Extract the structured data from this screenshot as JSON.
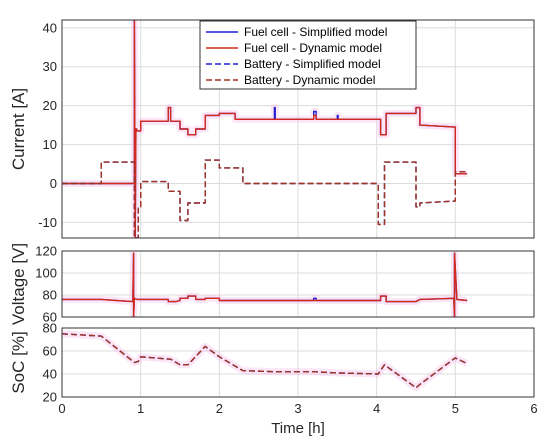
{
  "chart_data": [
    {
      "type": "line",
      "ylabel": "Current [A]",
      "xlim": [
        0,
        6
      ],
      "ylim": [
        -14,
        42
      ],
      "yticks": [
        -10,
        0,
        10,
        20,
        30,
        40
      ],
      "xticks": [
        0,
        1,
        2,
        3,
        4,
        5,
        6
      ],
      "grid": true,
      "legend_position": "top-right",
      "series": [
        {
          "name": "Fuel cell - Simplified model",
          "color": "#1f1fd0",
          "style": "solid",
          "x": [
            0,
            0.92,
            0.92,
            0.93,
            0.94,
            0.95,
            0.95,
            1.0,
            1.0,
            1.35,
            1.35,
            1.38,
            1.38,
            1.5,
            1.5,
            1.6,
            1.6,
            1.7,
            1.7,
            1.82,
            1.82,
            2.0,
            2.0,
            2.2,
            2.2,
            2.7,
            2.7,
            2.71,
            2.71,
            3.2,
            3.2,
            3.23,
            3.23,
            3.5,
            3.5,
            3.51,
            3.51,
            4.05,
            4.05,
            4.12,
            4.12,
            4.5,
            4.5,
            4.55,
            4.55,
            5.0,
            5.0,
            5.15
          ],
          "y": [
            0,
            0,
            42,
            -14,
            14,
            14,
            13.5,
            13.5,
            16,
            16,
            19.5,
            19.5,
            16,
            16,
            14,
            14,
            12.5,
            12.5,
            14,
            14,
            17.5,
            17.5,
            18,
            18,
            16.5,
            16.5,
            19.5,
            19.5,
            16.5,
            16.5,
            18.5,
            18.5,
            16.5,
            16.5,
            17.5,
            17.5,
            16.5,
            16.5,
            12.5,
            12.5,
            18,
            18,
            19.5,
            19.5,
            15,
            14.5,
            2.5,
            2.5
          ]
        },
        {
          "name": "Fuel cell - Dynamic model",
          "color": "#d42a1c",
          "style": "solid",
          "x": [
            0,
            0.92,
            0.92,
            0.93,
            0.94,
            0.95,
            0.95,
            1.0,
            1.0,
            1.35,
            1.35,
            1.38,
            1.38,
            1.5,
            1.5,
            1.6,
            1.6,
            1.7,
            1.7,
            1.82,
            1.82,
            2.0,
            2.0,
            2.2,
            2.2,
            2.7,
            2.7,
            3.2,
            3.2,
            3.23,
            3.23,
            4.05,
            4.05,
            4.12,
            4.12,
            4.5,
            4.5,
            4.55,
            4.55,
            5.0,
            5.0,
            5.15
          ],
          "y": [
            0,
            0,
            42,
            -14,
            14,
            14,
            13.5,
            13.5,
            16,
            16,
            19.5,
            19.5,
            16,
            16,
            14,
            14,
            12.5,
            12.5,
            14,
            14,
            17.5,
            17.5,
            18,
            18,
            16.5,
            16.5,
            16.5,
            16.5,
            17.5,
            17.5,
            16.5,
            16.5,
            12.5,
            12.5,
            18,
            18,
            19.5,
            19.5,
            15,
            14.5,
            2.5,
            2.5
          ]
        },
        {
          "name": "Battery - Simplified model",
          "color": "#1f1fd0",
          "style": "dashed",
          "x": [
            0,
            0.5,
            0.5,
            0.92,
            0.92,
            0.97,
            0.97,
            1.0,
            1.0,
            1.35,
            1.35,
            1.5,
            1.5,
            1.6,
            1.6,
            1.82,
            1.82,
            2.0,
            2.0,
            2.3,
            2.3,
            2.7,
            2.7,
            3.2,
            3.2,
            3.23,
            3.23,
            3.5,
            3.5,
            4.02,
            4.02,
            4.1,
            4.1,
            4.5,
            4.5,
            4.55,
            4.55,
            5.0,
            5.0,
            5.15
          ],
          "y": [
            0,
            0,
            5.5,
            5.5,
            -14,
            -14,
            -6,
            -6,
            0.5,
            0.5,
            -2,
            -2,
            -9.5,
            -9.5,
            -5,
            -5,
            6,
            6,
            4,
            4,
            0,
            0,
            0,
            0,
            0,
            0,
            0,
            0,
            0,
            0,
            -10.5,
            -10.5,
            5.5,
            5.5,
            -6,
            -6,
            -5,
            -4.5,
            3,
            3
          ]
        },
        {
          "name": "Battery - Dynamic model",
          "color": "#a2331c",
          "style": "dashed",
          "x": [
            0,
            0.5,
            0.5,
            0.92,
            0.92,
            0.97,
            0.97,
            1.0,
            1.0,
            1.35,
            1.35,
            1.5,
            1.5,
            1.6,
            1.6,
            1.82,
            1.82,
            2.0,
            2.0,
            2.3,
            2.3,
            2.7,
            2.7,
            3.2,
            3.2,
            3.23,
            3.23,
            3.5,
            3.5,
            4.02,
            4.02,
            4.1,
            4.1,
            4.5,
            4.5,
            4.55,
            4.55,
            5.0,
            5.0,
            5.15
          ],
          "y": [
            0,
            0,
            5.5,
            5.5,
            -14,
            -14,
            -6,
            -6,
            0.5,
            0.5,
            -2,
            -2,
            -9.5,
            -9.5,
            -5,
            -5,
            6,
            6,
            4,
            4,
            0,
            0,
            0,
            0,
            0,
            0,
            0,
            0,
            0,
            0,
            -10.5,
            -10.5,
            5.5,
            5.5,
            -6,
            -6,
            -5,
            -4.5,
            3,
            3
          ]
        }
      ]
    },
    {
      "type": "line",
      "ylabel": "Voltage [V]",
      "xlim": [
        0,
        6
      ],
      "ylim": [
        60,
        120
      ],
      "yticks": [
        60,
        80,
        100,
        120
      ],
      "xticks": [
        0,
        1,
        2,
        3,
        4,
        5,
        6
      ],
      "grid": true,
      "series": [
        {
          "name": "Simplified model",
          "color": "#1f1fd0",
          "style": "solid",
          "x": [
            0,
            0.5,
            0.9,
            0.9,
            0.91,
            0.91,
            0.92,
            0.95,
            1.0,
            1.35,
            1.35,
            1.45,
            1.5,
            1.5,
            1.6,
            1.6,
            1.7,
            1.7,
            1.82,
            1.82,
            2.0,
            2.0,
            2.3,
            2.7,
            3.2,
            3.2,
            3.23,
            3.23,
            4.05,
            4.05,
            4.12,
            4.12,
            4.5,
            4.5,
            4.55,
            4.55,
            4.98,
            4.98,
            4.99,
            4.99,
            5.02,
            5.15
          ],
          "y": [
            76,
            76,
            74,
            74,
            118,
            60,
            77,
            76,
            76,
            76,
            74,
            74,
            75,
            77,
            77,
            79,
            79,
            76,
            76,
            77,
            77,
            75,
            75,
            75,
            75,
            77,
            77,
            75,
            75,
            79,
            79,
            74,
            74,
            74,
            76,
            76,
            77,
            77,
            60,
            118,
            76,
            75
          ]
        },
        {
          "name": "Dynamic model",
          "color": "#d42a1c",
          "style": "solid",
          "x": [
            0,
            0.5,
            0.9,
            0.9,
            0.91,
            0.91,
            0.92,
            0.95,
            1.0,
            1.35,
            1.35,
            1.45,
            1.5,
            1.5,
            1.6,
            1.6,
            1.7,
            1.7,
            1.82,
            1.82,
            2.0,
            2.0,
            2.3,
            2.7,
            3.2,
            3.23,
            4.05,
            4.05,
            4.12,
            4.12,
            4.5,
            4.5,
            4.55,
            4.55,
            4.98,
            4.98,
            4.99,
            4.99,
            5.02,
            5.15
          ],
          "y": [
            76,
            76,
            74,
            74,
            118,
            60,
            77,
            76,
            76,
            76,
            74,
            74,
            75,
            77,
            77,
            79,
            79,
            76,
            76,
            77,
            77,
            75,
            75,
            75,
            75,
            75,
            75,
            79,
            79,
            74,
            74,
            74,
            76,
            76,
            77,
            77,
            60,
            118,
            76,
            75
          ]
        }
      ]
    },
    {
      "type": "line",
      "ylabel": "SoC [%]",
      "xlabel": "Time [h]",
      "xlim": [
        0,
        6
      ],
      "ylim": [
        20,
        80
      ],
      "yticks": [
        20,
        40,
        60,
        80
      ],
      "xticks": [
        0,
        1,
        2,
        3,
        4,
        5,
        6
      ],
      "grid": true,
      "series": [
        {
          "name": "Simplified model",
          "color": "#1f1fd0",
          "style": "dashed",
          "x": [
            0,
            0.5,
            0.92,
            0.97,
            1.0,
            1.35,
            1.38,
            1.5,
            1.6,
            1.82,
            2.0,
            2.3,
            2.7,
            3.2,
            3.5,
            4.02,
            4.1,
            4.5,
            4.55,
            5.0,
            5.15
          ],
          "y": [
            75,
            73,
            50,
            51,
            55,
            53,
            53,
            48,
            48,
            64,
            55,
            43,
            42,
            42,
            41,
            40,
            48,
            28,
            31,
            54,
            49
          ]
        },
        {
          "name": "Dynamic model",
          "color": "#a2331c",
          "style": "dashed",
          "x": [
            0,
            0.5,
            0.92,
            0.97,
            1.0,
            1.35,
            1.38,
            1.5,
            1.6,
            1.82,
            2.0,
            2.3,
            2.7,
            3.2,
            3.5,
            4.02,
            4.1,
            4.5,
            4.55,
            5.0,
            5.15
          ],
          "y": [
            75,
            73,
            50,
            51,
            55,
            53,
            53,
            48,
            48,
            64,
            55,
            43,
            42,
            42,
            41,
            40,
            48,
            28,
            31,
            54,
            49
          ]
        }
      ]
    }
  ]
}
